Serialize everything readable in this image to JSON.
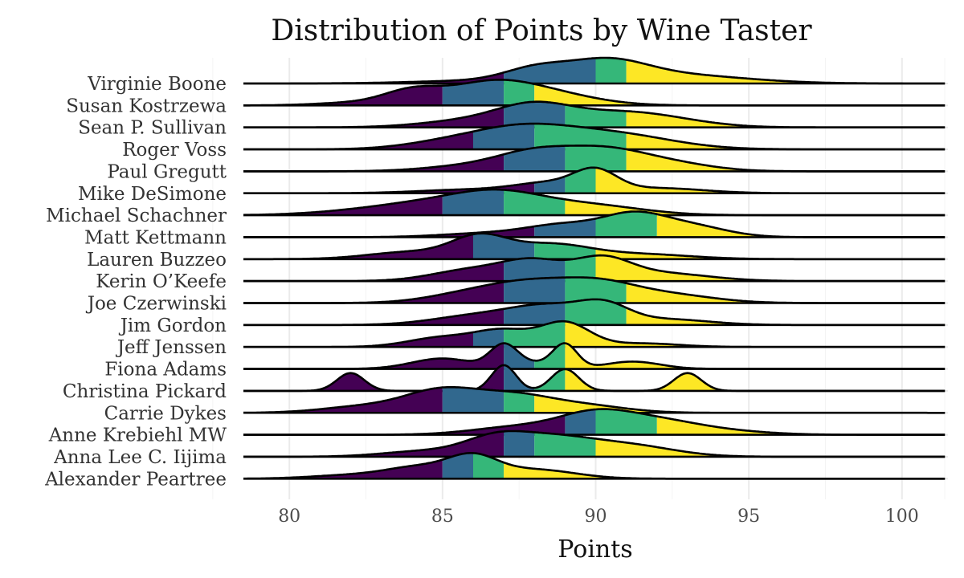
{
  "chart_data": {
    "type": "ridgeline",
    "title": "Distribution of Points by Wine Taster",
    "xlabel": "Points",
    "ylabel": "",
    "xlim": [
      78.5,
      101.5
    ],
    "xticks": [
      80,
      85,
      90,
      95,
      100
    ],
    "grid": true,
    "fill": "quartiles",
    "quartile_colors": [
      "#440154",
      "#31688e",
      "#35b779",
      "#fde725"
    ],
    "series": [
      {
        "name": "Virginie Boone",
        "q_breaks": [
          87,
          90,
          91
        ],
        "peaks": [
          {
            "mu": 88,
            "sd": 1.0,
            "w": 0.45
          },
          {
            "mu": 90.3,
            "sd": 1.3,
            "w": 0.75
          },
          {
            "mu": 92.5,
            "sd": 2.3,
            "w": 0.35
          },
          {
            "mu": 86.5,
            "sd": 2.2,
            "w": 0.12
          }
        ]
      },
      {
        "name": "Susan Kostrzewa",
        "q_breaks": [
          85,
          87,
          88
        ],
        "peaks": [
          {
            "mu": 84,
            "sd": 0.9,
            "w": 0.45
          },
          {
            "mu": 86.4,
            "sd": 1.4,
            "w": 0.7
          },
          {
            "mu": 88.3,
            "sd": 1.6,
            "w": 0.45
          },
          {
            "mu": 82.5,
            "sd": 1.4,
            "w": 0.12
          }
        ]
      },
      {
        "name": "Sean P. Sullivan",
        "q_breaks": [
          87,
          89,
          91
        ],
        "peaks": [
          {
            "mu": 88,
            "sd": 1.2,
            "w": 0.8
          },
          {
            "mu": 90.6,
            "sd": 1.6,
            "w": 0.55
          },
          {
            "mu": 86,
            "sd": 1.6,
            "w": 0.3
          },
          {
            "mu": 92.5,
            "sd": 1.5,
            "w": 0.2
          }
        ]
      },
      {
        "name": "Roger Voss",
        "q_breaks": [
          86,
          88,
          91
        ],
        "peaks": [
          {
            "mu": 87.5,
            "sd": 1.6,
            "w": 0.7
          },
          {
            "mu": 90.5,
            "sd": 1.9,
            "w": 0.55
          },
          {
            "mu": 85,
            "sd": 1.4,
            "w": 0.2
          }
        ]
      },
      {
        "name": "Paul Gregutt",
        "q_breaks": [
          87,
          89,
          91
        ],
        "peaks": [
          {
            "mu": 88,
            "sd": 1.2,
            "w": 0.6
          },
          {
            "mu": 90.2,
            "sd": 1.3,
            "w": 0.7
          },
          {
            "mu": 92.3,
            "sd": 1.4,
            "w": 0.3
          },
          {
            "mu": 86,
            "sd": 1.5,
            "w": 0.2
          }
        ]
      },
      {
        "name": "Mike DeSimone",
        "q_breaks": [
          88,
          89,
          90
        ],
        "peaks": [
          {
            "mu": 90,
            "sd": 0.7,
            "w": 0.95
          },
          {
            "mu": 88.5,
            "sd": 1.1,
            "w": 0.45
          },
          {
            "mu": 92,
            "sd": 1.5,
            "w": 0.25
          },
          {
            "mu": 86,
            "sd": 1.7,
            "w": 0.18
          }
        ]
      },
      {
        "name": "Michael Schachner",
        "q_breaks": [
          85,
          87,
          89
        ],
        "peaks": [
          {
            "mu": 86.8,
            "sd": 1.5,
            "w": 0.75
          },
          {
            "mu": 84.3,
            "sd": 1.6,
            "w": 0.35
          },
          {
            "mu": 89.8,
            "sd": 1.7,
            "w": 0.35
          },
          {
            "mu": 82,
            "sd": 1.6,
            "w": 0.1
          }
        ]
      },
      {
        "name": "Matt Kettmann",
        "q_breaks": [
          88,
          90,
          92
        ],
        "peaks": [
          {
            "mu": 89,
            "sd": 1.2,
            "w": 0.45
          },
          {
            "mu": 91.2,
            "sd": 1.0,
            "w": 0.75
          },
          {
            "mu": 93,
            "sd": 1.2,
            "w": 0.45
          },
          {
            "mu": 86.5,
            "sd": 1.5,
            "w": 0.15
          }
        ]
      },
      {
        "name": "Lauren Buzzeo",
        "q_breaks": [
          86,
          88,
          90
        ],
        "peaks": [
          {
            "mu": 86.2,
            "sd": 0.9,
            "w": 0.85
          },
          {
            "mu": 88.5,
            "sd": 1.3,
            "w": 0.6
          },
          {
            "mu": 84,
            "sd": 1.4,
            "w": 0.3
          },
          {
            "mu": 91.5,
            "sd": 1.6,
            "w": 0.2
          }
        ]
      },
      {
        "name": "Kerin O’Keefe",
        "q_breaks": [
          87,
          89,
          90
        ],
        "peaks": [
          {
            "mu": 88,
            "sd": 1.0,
            "w": 0.55
          },
          {
            "mu": 90.2,
            "sd": 0.9,
            "w": 0.6
          },
          {
            "mu": 86,
            "sd": 1.3,
            "w": 0.35
          },
          {
            "mu": 92,
            "sd": 1.6,
            "w": 0.25
          }
        ]
      },
      {
        "name": "Joe Czerwinski",
        "q_breaks": [
          87,
          89,
          91
        ],
        "peaks": [
          {
            "mu": 88,
            "sd": 1.3,
            "w": 0.6
          },
          {
            "mu": 90.1,
            "sd": 1.2,
            "w": 0.6
          },
          {
            "mu": 86,
            "sd": 1.4,
            "w": 0.35
          },
          {
            "mu": 92.3,
            "sd": 1.5,
            "w": 0.3
          }
        ]
      },
      {
        "name": "Jim Gordon",
        "q_breaks": [
          87,
          89,
          91
        ],
        "peaks": [
          {
            "mu": 88.5,
            "sd": 1.3,
            "w": 0.65
          },
          {
            "mu": 90.3,
            "sd": 0.8,
            "w": 0.55
          },
          {
            "mu": 86,
            "sd": 1.4,
            "w": 0.3
          },
          {
            "mu": 92.3,
            "sd": 1.4,
            "w": 0.2
          }
        ]
      },
      {
        "name": "Jeff Jenssen",
        "q_breaks": [
          86,
          87,
          89
        ],
        "peaks": [
          {
            "mu": 89,
            "sd": 0.8,
            "w": 1.0
          },
          {
            "mu": 87,
            "sd": 0.9,
            "w": 0.65
          },
          {
            "mu": 85,
            "sd": 1.1,
            "w": 0.4
          },
          {
            "mu": 91.5,
            "sd": 1.2,
            "w": 0.15
          }
        ]
      },
      {
        "name": "Fiona Adams",
        "q_breaks": [
          87,
          88,
          89
        ],
        "peaks": [
          {
            "mu": 87,
            "sd": 0.45,
            "w": 1.1
          },
          {
            "mu": 89,
            "sd": 0.4,
            "w": 1.15
          },
          {
            "mu": 85,
            "sd": 1.0,
            "w": 0.5
          },
          {
            "mu": 91.2,
            "sd": 0.9,
            "w": 0.35
          },
          {
            "mu": 88,
            "sd": 0.6,
            "w": 0.25
          }
        ]
      },
      {
        "name": "Christina Pickard",
        "q_breaks": [
          87,
          88,
          89
        ],
        "peaks": [
          {
            "mu": 82,
            "sd": 0.45,
            "w": 0.9
          },
          {
            "mu": 87,
            "sd": 0.4,
            "w": 1.3
          },
          {
            "mu": 89,
            "sd": 0.45,
            "w": 1.1
          },
          {
            "mu": 93,
            "sd": 0.45,
            "w": 0.9
          }
        ]
      },
      {
        "name": "Carrie Dykes",
        "q_breaks": [
          85,
          87,
          88
        ],
        "peaks": [
          {
            "mu": 85,
            "sd": 1.2,
            "w": 0.85
          },
          {
            "mu": 87.3,
            "sd": 1.2,
            "w": 0.6
          },
          {
            "mu": 82.5,
            "sd": 1.4,
            "w": 0.25
          },
          {
            "mu": 89.5,
            "sd": 1.4,
            "w": 0.3
          }
        ]
      },
      {
        "name": "Anne Krebiehl MW",
        "q_breaks": [
          89,
          90,
          92
        ],
        "peaks": [
          {
            "mu": 90,
            "sd": 1.2,
            "w": 0.75
          },
          {
            "mu": 92,
            "sd": 1.3,
            "w": 0.45
          },
          {
            "mu": 87.5,
            "sd": 1.5,
            "w": 0.3
          },
          {
            "mu": 94,
            "sd": 1.5,
            "w": 0.15
          }
        ]
      },
      {
        "name": "Anna Lee C. Iijima",
        "q_breaks": [
          87,
          88,
          90
        ],
        "peaks": [
          {
            "mu": 86.7,
            "sd": 1.0,
            "w": 0.55
          },
          {
            "mu": 88.5,
            "sd": 1.3,
            "w": 0.6
          },
          {
            "mu": 91,
            "sd": 1.5,
            "w": 0.4
          },
          {
            "mu": 84.5,
            "sd": 1.4,
            "w": 0.2
          }
        ]
      },
      {
        "name": "Alexander Peartree",
        "q_breaks": [
          85,
          86,
          87
        ],
        "peaks": [
          {
            "mu": 86,
            "sd": 0.8,
            "w": 0.85
          },
          {
            "mu": 84.3,
            "sd": 1.1,
            "w": 0.5
          },
          {
            "mu": 88,
            "sd": 1.3,
            "w": 0.4
          },
          {
            "mu": 82,
            "sd": 1.3,
            "w": 0.15
          }
        ]
      }
    ]
  }
}
